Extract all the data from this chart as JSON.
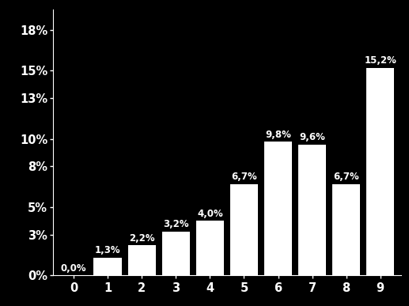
{
  "categories": [
    0,
    1,
    2,
    3,
    4,
    5,
    6,
    7,
    8,
    9
  ],
  "values": [
    0.0,
    1.3,
    2.2,
    3.2,
    4.0,
    6.7,
    9.8,
    9.6,
    6.7,
    15.2
  ],
  "labels": [
    "0,0%",
    "1,3%",
    "2,2%",
    "3,2%",
    "4,0%",
    "6,7%",
    "9,8%",
    "9,6%",
    "6,7%",
    "15,2%"
  ],
  "bar_color": "#ffffff",
  "background_color": "#000000",
  "text_color": "#ffffff",
  "yticks": [
    0,
    3,
    5,
    8,
    10,
    13,
    15,
    18
  ],
  "ytick_labels": [
    "0%",
    "3%",
    "5%",
    "8%",
    "10%",
    "13%",
    "15%",
    "18%"
  ],
  "ylim": [
    0,
    19.5
  ],
  "bar_width": 0.82,
  "label_fontsize": 8.5,
  "tick_fontsize": 10.5
}
